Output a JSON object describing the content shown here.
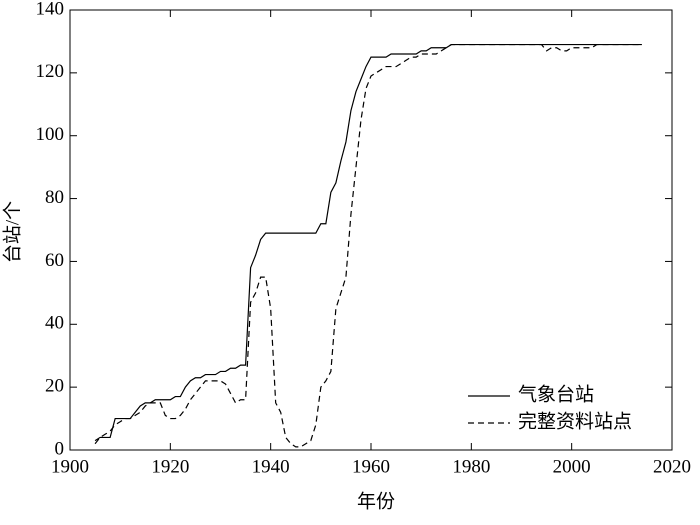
{
  "chart_data": {
    "type": "line",
    "x_label": "年份",
    "y_label": "台站/个",
    "x": [
      1905,
      1906,
      1907,
      1908,
      1909,
      1910,
      1911,
      1912,
      1913,
      1914,
      1915,
      1916,
      1917,
      1918,
      1919,
      1920,
      1921,
      1922,
      1923,
      1924,
      1925,
      1926,
      1927,
      1928,
      1929,
      1930,
      1931,
      1932,
      1933,
      1934,
      1935,
      1936,
      1937,
      1938,
      1939,
      1940,
      1941,
      1942,
      1943,
      1944,
      1945,
      1946,
      1947,
      1948,
      1949,
      1950,
      1951,
      1952,
      1953,
      1954,
      1955,
      1956,
      1957,
      1958,
      1959,
      1960,
      1961,
      1962,
      1963,
      1964,
      1965,
      1966,
      1967,
      1968,
      1969,
      1970,
      1971,
      1972,
      1973,
      1974,
      1975,
      1976,
      1977,
      1978,
      1979,
      1980,
      1981,
      1982,
      1983,
      1984,
      1985,
      1986,
      1987,
      1988,
      1989,
      1990,
      1991,
      1992,
      1993,
      1994,
      1995,
      1996,
      1997,
      1998,
      1999,
      2000,
      2001,
      2002,
      2003,
      2004,
      2005,
      2006,
      2007,
      2008,
      2009,
      2010,
      2011,
      2012,
      2013,
      2014
    ],
    "series": [
      {
        "name": "气象台站",
        "color": "#000000",
        "dash": "solid",
        "values": [
          3,
          4,
          4,
          4,
          10,
          10,
          10,
          10,
          12,
          14,
          15,
          15,
          16,
          16,
          16,
          16,
          17,
          17,
          20,
          22,
          23,
          23,
          24,
          24,
          24,
          25,
          25,
          26,
          26,
          27,
          27,
          58,
          62,
          67,
          69,
          69,
          69,
          69,
          69,
          69,
          69,
          69,
          69,
          69,
          69,
          72,
          72,
          82,
          85,
          92,
          98,
          108,
          114,
          118,
          122,
          125,
          125,
          125,
          125,
          126,
          126,
          126,
          126,
          126,
          126,
          127,
          127,
          128,
          128,
          128,
          128,
          129,
          129,
          129,
          129,
          129,
          129,
          129,
          129,
          129,
          129,
          129,
          129,
          129,
          129,
          129,
          129,
          129,
          129,
          129,
          129,
          129,
          129,
          129,
          129,
          129,
          129,
          129,
          129,
          129,
          129,
          129,
          129,
          129,
          129,
          129,
          129,
          129,
          129,
          129
        ]
      },
      {
        "name": "完整资料站点",
        "color": "#000000",
        "dash": "dashed",
        "values": [
          2,
          4,
          5,
          6,
          8,
          9,
          10,
          10,
          11,
          12,
          14,
          15,
          15,
          15,
          11,
          10,
          10,
          11,
          13,
          16,
          18,
          20,
          22,
          22,
          22,
          22,
          21,
          18,
          15,
          16,
          16,
          47,
          50,
          55,
          55,
          45,
          15,
          12,
          4,
          2,
          1,
          1,
          2,
          3,
          8,
          20,
          22,
          25,
          45,
          50,
          55,
          75,
          90,
          105,
          115,
          119,
          120,
          121,
          122,
          122,
          122,
          123,
          124,
          125,
          125,
          126,
          126,
          126,
          126,
          127,
          128,
          129,
          129,
          129,
          129,
          129,
          129,
          129,
          129,
          129,
          129,
          129,
          129,
          129,
          129,
          129,
          129,
          129,
          129,
          129,
          127,
          128,
          128,
          127,
          127,
          128,
          128,
          128,
          128,
          128,
          129,
          129,
          129,
          129,
          129,
          129,
          129,
          129,
          129,
          129
        ]
      }
    ],
    "xlim": [
      1900,
      2020
    ],
    "xticks": [
      1900,
      1920,
      1940,
      1960,
      1980,
      2000,
      2020
    ],
    "ylim": [
      0,
      140
    ],
    "yticks": [
      0,
      20,
      40,
      60,
      80,
      100,
      120,
      140
    ],
    "legend": "lower-right"
  }
}
